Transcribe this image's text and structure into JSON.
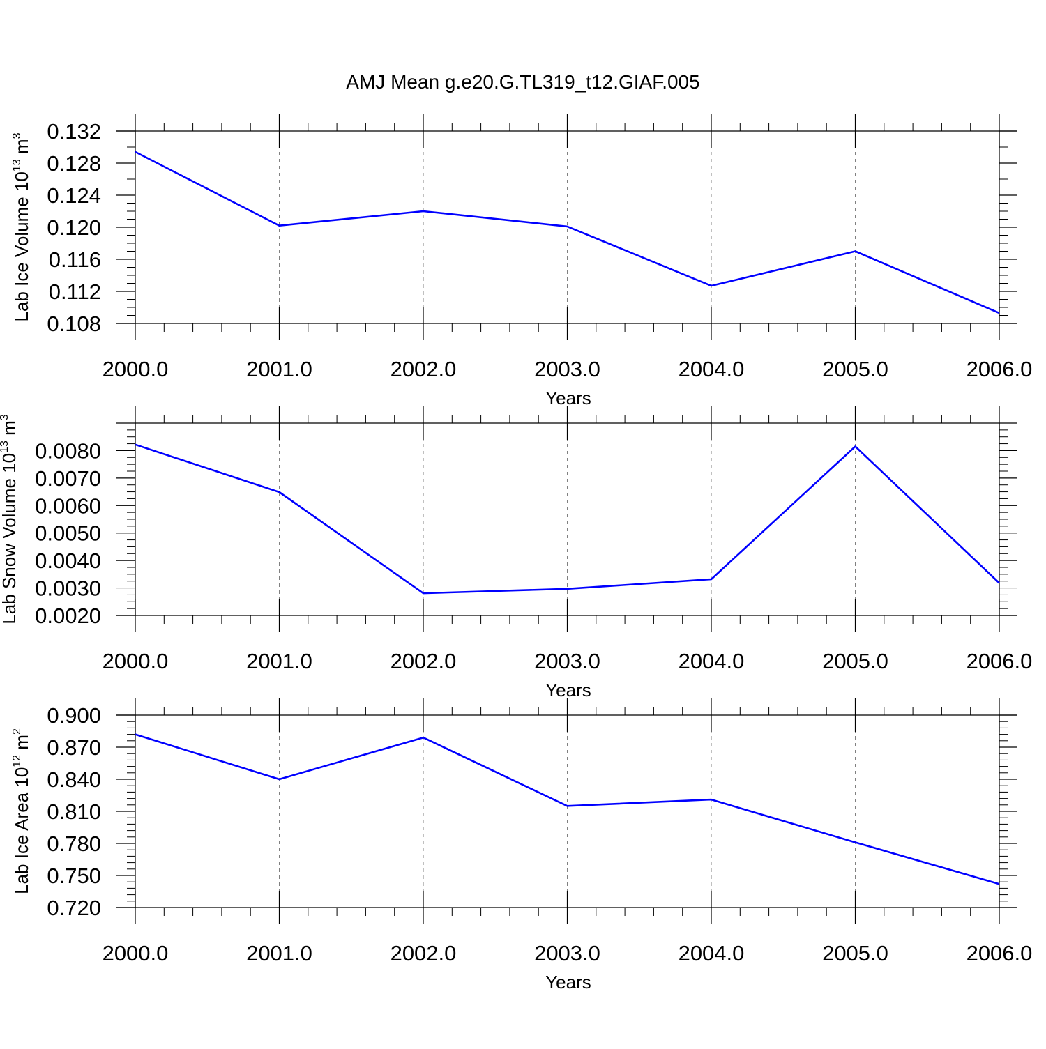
{
  "title": "AMJ Mean g.e20.G.TL319_t12.GIAF.005",
  "colors": {
    "line": "#0000ff",
    "axis": "#000000",
    "grid": "#808080"
  },
  "chart_data": [
    {
      "type": "line",
      "x": [
        2000,
        2001,
        2002,
        2003,
        2004,
        2005,
        2006
      ],
      "series": [
        {
          "values": [
            0.1294,
            0.1202,
            0.122,
            0.1201,
            0.1127,
            0.117,
            0.1093
          ]
        }
      ],
      "xlim": [
        2000,
        2006
      ],
      "ylim": [
        0.108,
        0.132
      ],
      "xticks": [
        "2000.0",
        "2001.0",
        "2002.0",
        "2003.0",
        "2004.0",
        "2005.0",
        "2006.0"
      ],
      "yticks": [
        "0.108",
        "0.112",
        "0.116",
        "0.120",
        "0.124",
        "0.128",
        "0.132"
      ],
      "xlabel": "Years",
      "ylabel": {
        "text": "Lab Ice Volume 10",
        "sup": "13",
        "unit": " m",
        "unit_sup": "3"
      },
      "grid": "vertical dashed"
    },
    {
      "type": "line",
      "x": [
        2000,
        2001,
        2002,
        2003,
        2004,
        2005,
        2006
      ],
      "series": [
        {
          "values": [
            0.00822,
            0.00649,
            0.00281,
            0.00297,
            0.00332,
            0.00815,
            0.00318
          ]
        }
      ],
      "xlim": [
        2000,
        2006
      ],
      "ylim": [
        0.002,
        0.009
      ],
      "xticks": [
        "2000.0",
        "2001.0",
        "2002.0",
        "2003.0",
        "2004.0",
        "2005.0",
        "2006.0"
      ],
      "yticks": [
        "0.0020",
        "0.0030",
        "0.0040",
        "0.0050",
        "0.0060",
        "0.0070",
        "0.0080"
      ],
      "xlabel": "Years",
      "ylabel": {
        "text": "Lab Snow Volume 10",
        "sup": "13",
        "unit": " m",
        "unit_sup": "3"
      },
      "grid": "vertical dashed"
    },
    {
      "type": "line",
      "x": [
        2000,
        2001,
        2002,
        2003,
        2004,
        2005,
        2006
      ],
      "series": [
        {
          "values": [
            0.882,
            0.84,
            0.879,
            0.815,
            0.821,
            0.781,
            0.742
          ]
        }
      ],
      "xlim": [
        2000,
        2006
      ],
      "ylim": [
        0.72,
        0.9
      ],
      "xticks": [
        "2000.0",
        "2001.0",
        "2002.0",
        "2003.0",
        "2004.0",
        "2005.0",
        "2006.0"
      ],
      "yticks": [
        "0.720",
        "0.750",
        "0.780",
        "0.810",
        "0.840",
        "0.870",
        "0.900"
      ],
      "xlabel": "Years",
      "ylabel": {
        "text": "Lab Ice Area 10",
        "sup": "12",
        "unit": " m",
        "unit_sup": "2"
      },
      "grid": "vertical dashed"
    }
  ]
}
